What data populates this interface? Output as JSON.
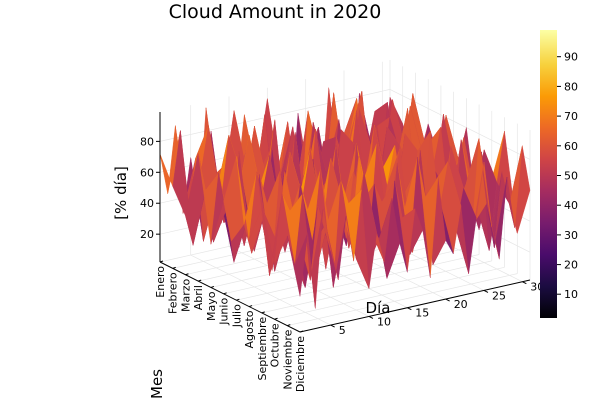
{
  "chart_data": {
    "type": "surface3d",
    "title": "Cloud Amount in 2020",
    "xlabel": "Mes",
    "ylabel": "Día",
    "zlabel": "[% día]",
    "months": [
      "Enero",
      "Febrero",
      "Marzo",
      "Abril",
      "Mayo",
      "Junio",
      "Julio",
      "Agosto",
      "Septiembre",
      "Octubre",
      "Noviembre",
      "Diciembre"
    ],
    "day_ticks": [
      5,
      10,
      15,
      20,
      25,
      30
    ],
    "z_ticks": [
      20,
      40,
      60,
      80
    ],
    "zlim": [
      2,
      99
    ],
    "colorbar_ticks": [
      10,
      20,
      30,
      40,
      50,
      60,
      70,
      80,
      90
    ],
    "colormap": [
      "#000004",
      "#1b0c41",
      "#4a0c6b",
      "#781c6d",
      "#a52c60",
      "#cf4446",
      "#ed6925",
      "#fb9b06",
      "#f7d13d",
      "#fcffa4"
    ],
    "values": [
      [
        72,
        45,
        88,
        30,
        65,
        22,
        95,
        50,
        18,
        70,
        40,
        85,
        25,
        60,
        92,
        35,
        55,
        15,
        78,
        48,
        66,
        20,
        90,
        38,
        58,
        12,
        82,
        44,
        68,
        28,
        75
      ],
      [
        55,
        90,
        35,
        70,
        15,
        85,
        40,
        62,
        95,
        28,
        75,
        50,
        88,
        20,
        45,
        80,
        30,
        65,
        10,
        72,
        42,
        92,
        25,
        60,
        85,
        35,
        50,
        18,
        78,
        40,
        62
      ],
      [
        40,
        20,
        65,
        95,
        50,
        30,
        78,
        12,
        60,
        88,
        35,
        70,
        15,
        55,
        82,
        25,
        90,
        45,
        68,
        22,
        80,
        38,
        58,
        95,
        30,
        70,
        48,
        85,
        20,
        62,
        35
      ],
      [
        85,
        60,
        25,
        50,
        92,
        40,
        18,
        75,
        35,
        55,
        95,
        22,
        68,
        45,
        30,
        88,
        60,
        12,
        75,
        50,
        35,
        90,
        65,
        20,
        45,
        80,
        28,
        58,
        92,
        40,
        70
      ],
      [
        30,
        75,
        50,
        15,
        70,
        95,
        55,
        28,
        82,
        40,
        20,
        90,
        48,
        72,
        18,
        60,
        38,
        85,
        52,
        95,
        25,
        68,
        42,
        80,
        15,
        55,
        90,
        35,
        62,
        20,
        48
      ],
      [
        62,
        35,
        92,
        45,
        25,
        60,
        85,
        40,
        20,
        75,
        58,
        30,
        95,
        38,
        70,
        50,
        15,
        80,
        42,
        28,
        88,
        55,
        18,
        72,
        95,
        40,
        62,
        28,
        50,
        85,
        32
      ],
      [
        95,
        50,
        30,
        80,
        60,
        15,
        45,
        90,
        55,
        25,
        82,
        62,
        35,
        88,
        50,
        20,
        72,
        40,
        95,
        65,
        30,
        48,
        85,
        55,
        22,
        75,
        38,
        92,
        45,
        60,
        80
      ],
      [
        45,
        88,
        60,
        22,
        85,
        50,
        30,
        65,
        95,
        48,
        15,
        75,
        55,
        25,
        92,
        68,
        45,
        30,
        60,
        85,
        50,
        20,
        78,
        40,
        65,
        90,
        25,
        55,
        80,
        35,
        18
      ],
      [
        70,
        25,
        45,
        90,
        35,
        80,
        62,
        20,
        48,
        92,
        65,
        38,
        80,
        58,
        30,
        95,
        22,
        60,
        88,
        35,
        72,
        45,
        95,
        30,
        55,
        18,
        85,
        60,
        40,
        75,
        55
      ],
      [
        38,
        82,
        70,
        55,
        18,
        45,
        92,
        58,
        30,
        65,
        40,
        95,
        22,
        75,
        62,
        35,
        85,
        55,
        25,
        90,
        42,
        68,
        28,
        88,
        50,
        62,
        35,
        80,
        15,
        58,
        90
      ],
      [
        60,
        40,
        85,
        28,
        75,
        62,
        20,
        88,
        72,
        35,
        90,
        50,
        45,
        18,
        80,
        55,
        30,
        92,
        65,
        20,
        58,
        85,
        40,
        65,
        30,
        95,
        52,
        22,
        70,
        48,
        28
      ],
      [
        25,
        65,
        15,
        78,
        50,
        30,
        70,
        40,
        85,
        20,
        55,
        35,
        75,
        45,
        25,
        65,
        50,
        18,
        82,
        40,
        30,
        60,
        15,
        50,
        85,
        42,
        20,
        72,
        38,
        90,
        60
      ]
    ]
  }
}
